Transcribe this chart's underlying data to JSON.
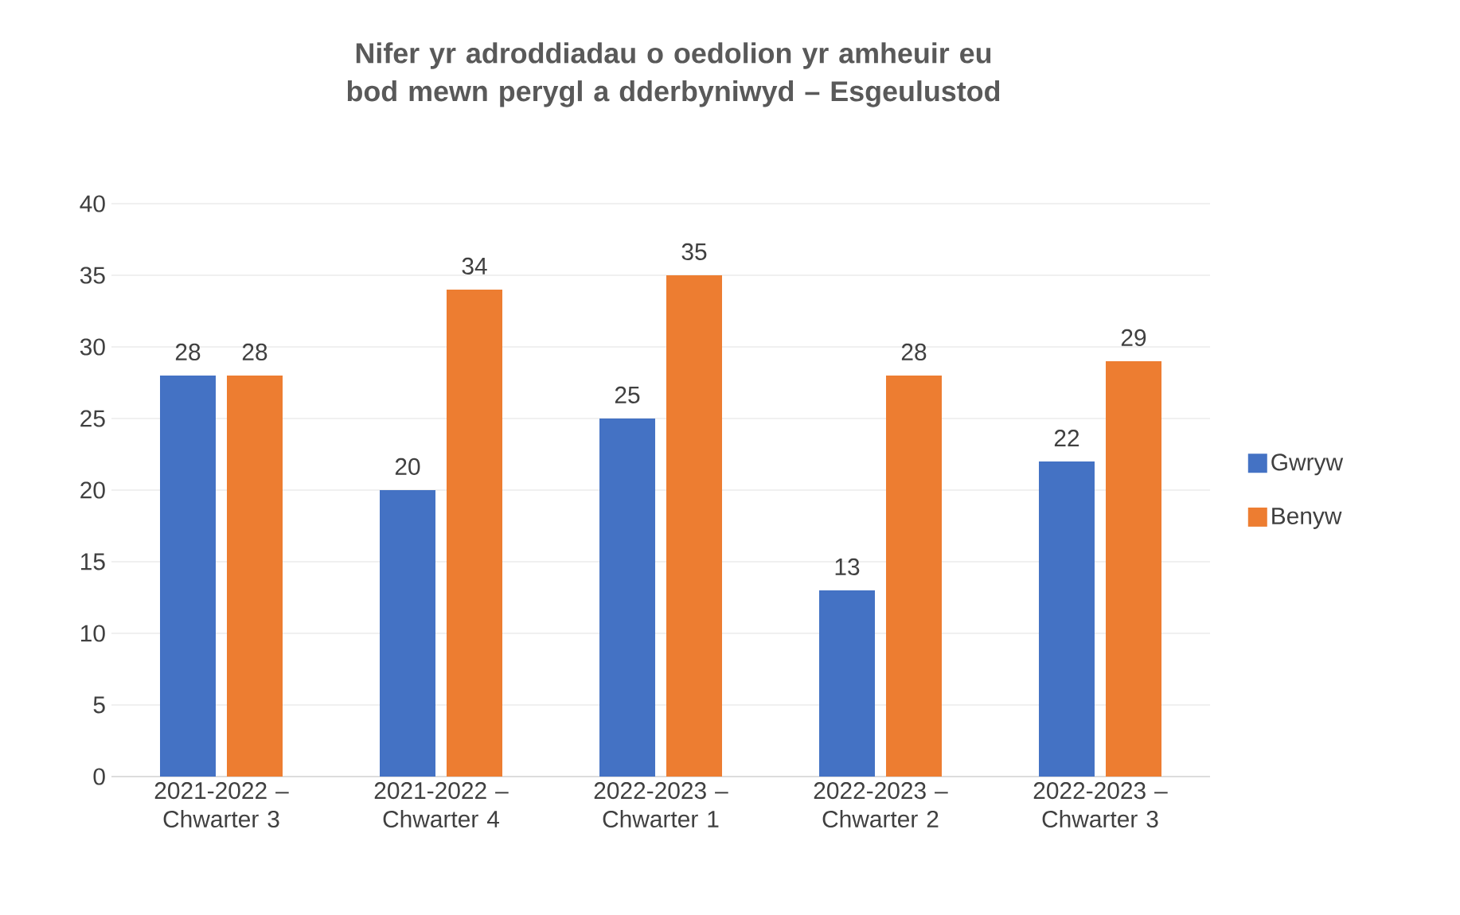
{
  "chart_data": {
    "type": "bar",
    "title": "Nifer yr adroddiadau o oedolion yr amheuir eu bod mewn perygl a dderbyniwyd – Esgeulustod",
    "categories": [
      "2021-2022 – Chwarter 3",
      "2021-2022 – Chwarter 4",
      "2022-2023 – Chwarter 1",
      "2022-2023 – Chwarter 2",
      "2022-2023 – Chwarter 3"
    ],
    "series": [
      {
        "name": "Gwryw",
        "color": "#4472c4",
        "values": [
          28,
          20,
          25,
          13,
          22
        ]
      },
      {
        "name": "Benyw",
        "color": "#ed7d31",
        "values": [
          28,
          34,
          35,
          28,
          29
        ]
      }
    ],
    "ylim": [
      0,
      40
    ],
    "yticks": [
      0,
      5,
      10,
      15,
      20,
      25,
      30,
      35,
      40
    ],
    "grid": "y",
    "legend": "right",
    "data_labels": true
  }
}
